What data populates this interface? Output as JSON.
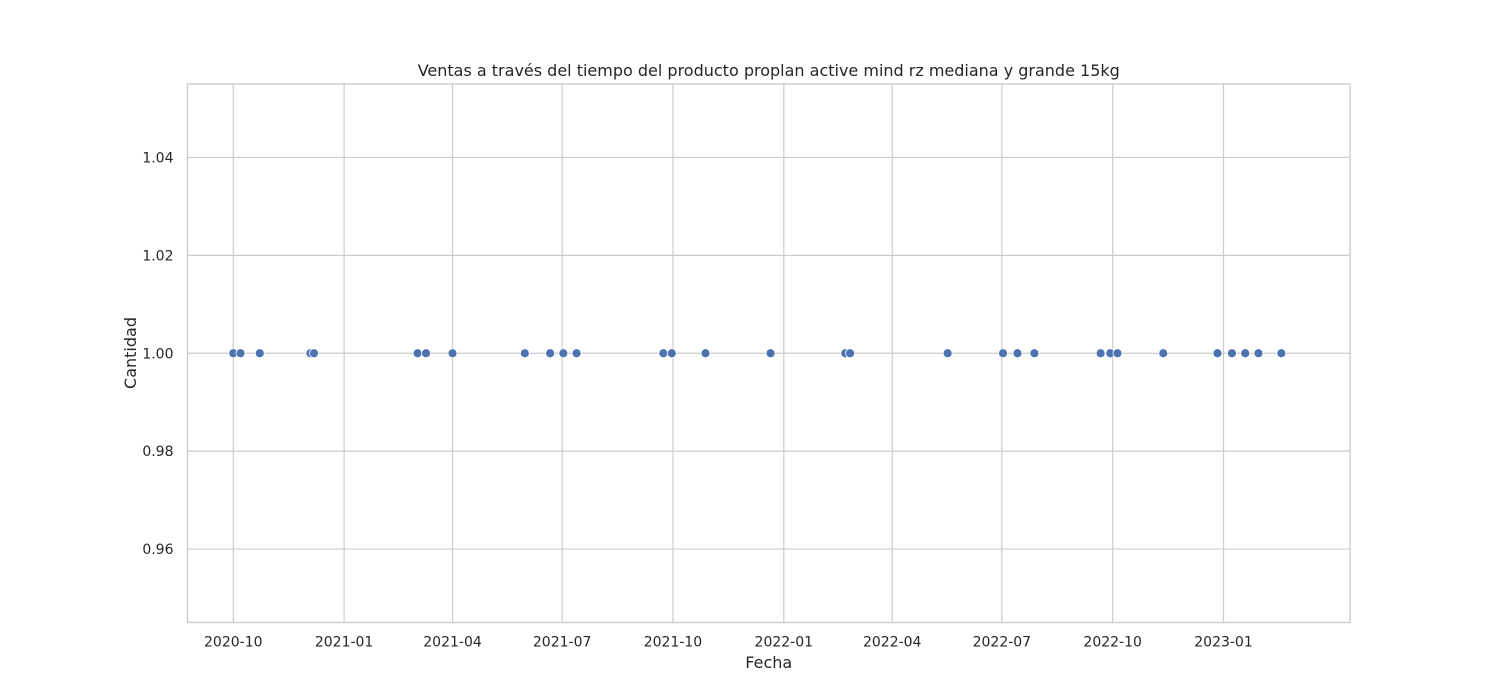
{
  "chart_data": {
    "type": "scatter",
    "title": "Ventas a través del tiempo del producto proplan active mind rz mediana y grande 15kg",
    "xlabel": "Fecha",
    "ylabel": "Cantidad",
    "x_scale": "date",
    "xlim": [
      "2020-08-24",
      "2023-04-16"
    ],
    "ylim": [
      0.945,
      1.055
    ],
    "x_ticks": [
      "2020-10",
      "2021-01",
      "2021-04",
      "2021-07",
      "2021-10",
      "2022-01",
      "2022-04",
      "2022-07",
      "2022-10",
      "2023-01"
    ],
    "y_ticks": [
      0.96,
      0.98,
      1.0,
      1.02,
      1.04
    ],
    "y_tick_labels": [
      "0.96",
      "0.98",
      "1.00",
      "1.02",
      "1.04"
    ],
    "grid": true,
    "series": [
      {
        "color": "#4c72b0",
        "x": [
          "2020-10-01",
          "2020-10-07",
          "2020-10-23",
          "2020-12-04",
          "2020-12-07",
          "2021-03-03",
          "2021-03-10",
          "2021-04-01",
          "2021-05-31",
          "2021-06-21",
          "2021-07-02",
          "2021-07-13",
          "2021-09-23",
          "2021-09-30",
          "2021-10-28",
          "2021-12-21",
          "2022-02-21",
          "2022-02-25",
          "2022-05-17",
          "2022-07-02",
          "2022-07-14",
          "2022-07-28",
          "2022-09-21",
          "2022-09-29",
          "2022-10-05",
          "2022-11-12",
          "2022-12-27",
          "2023-01-08",
          "2023-01-19",
          "2023-01-30",
          "2023-02-18"
        ],
        "y": [
          1,
          1,
          1,
          1,
          1,
          1,
          1,
          1,
          1,
          1,
          1,
          1,
          1,
          1,
          1,
          1,
          1,
          1,
          1,
          1,
          1,
          1,
          1,
          1,
          1,
          1,
          1,
          1,
          1,
          1,
          1
        ]
      }
    ]
  }
}
